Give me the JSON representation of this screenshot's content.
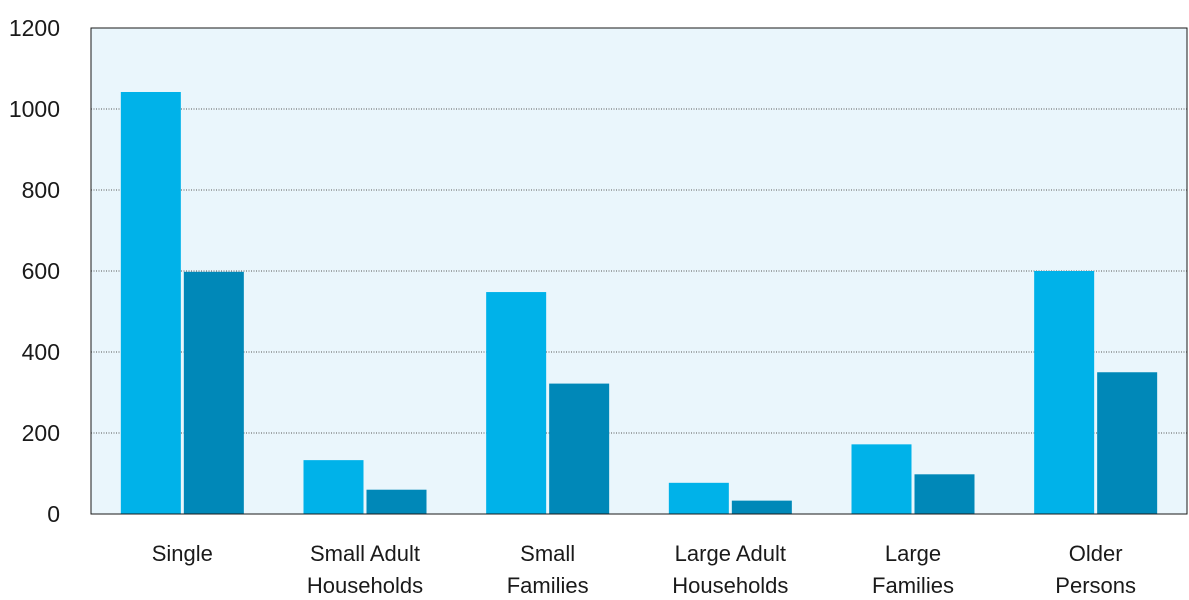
{
  "chart_data": {
    "type": "bar",
    "categories": [
      [
        "Single"
      ],
      [
        "Small Adult",
        "Households"
      ],
      [
        "Small",
        "Families"
      ],
      [
        "Large Adult",
        "Households"
      ],
      [
        "Large",
        "Families"
      ],
      [
        "Older",
        "Persons"
      ]
    ],
    "series": [
      {
        "values": [
          1042,
          133,
          548,
          77,
          172,
          600
        ]
      },
      {
        "values": [
          598,
          60,
          322,
          33,
          98,
          350
        ]
      }
    ],
    "ylim": [
      0,
      1200
    ],
    "yticks": [
      0,
      200,
      400,
      600,
      800,
      1000,
      1200
    ],
    "grid": true,
    "legend": "none",
    "title": "",
    "xlabel": "",
    "ylabel": ""
  },
  "colors": {
    "series": [
      "#00b2e9",
      "#0088b8"
    ],
    "plot_background": "#eaf6fc",
    "gridline": "#555555",
    "axis": "#1a1a1a"
  }
}
